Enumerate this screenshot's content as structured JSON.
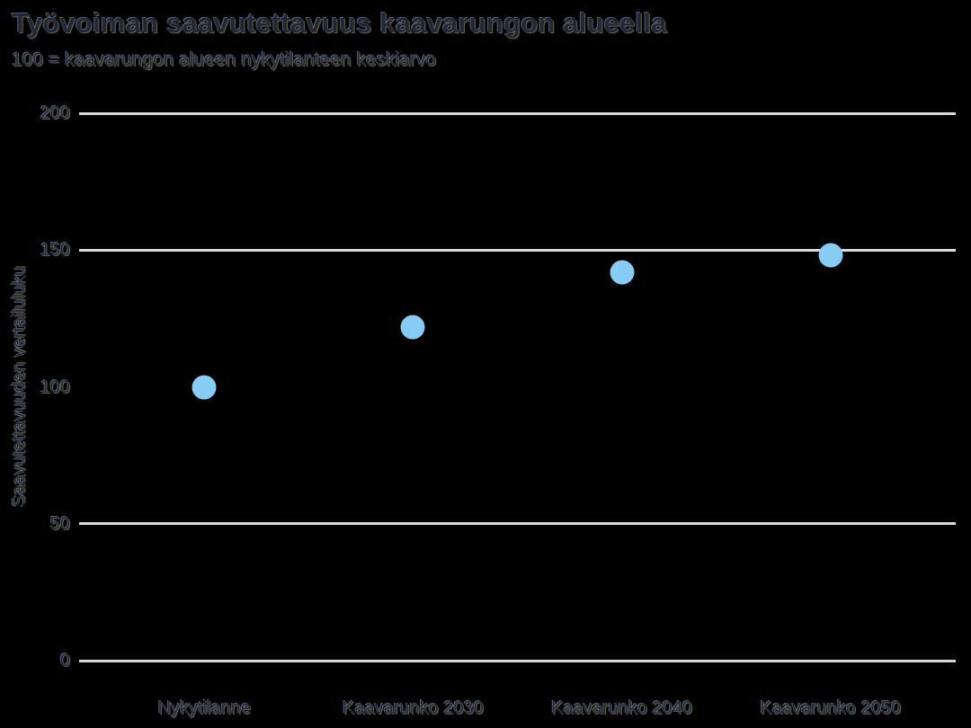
{
  "colors": {
    "background": "#000000",
    "gridline": "#d9d9d9",
    "point": "#86ccf5",
    "text": "#232830"
  },
  "chart_data": {
    "type": "scatter",
    "title": "Työvoiman saavutettavuus kaavarungon alueella",
    "subtitle": "100 = kaavarungon alueen nykytilanteen keskiarvo",
    "ylabel": "Saavutettavuuden vertailuluku",
    "xlabel": "",
    "categories": [
      "Nykytilanne",
      "Kaavarunko 2030",
      "Kaavarunko 2040",
      "Kaavarunko 2050"
    ],
    "values": [
      100,
      122,
      142,
      148
    ],
    "ylim": [
      0,
      200
    ],
    "yticks": [
      0,
      50,
      100,
      150,
      200
    ],
    "gridlines_at": [
      0,
      50,
      150,
      200
    ],
    "grid": "horizontal-only",
    "legend": "none",
    "point_color": "#86ccf5"
  }
}
